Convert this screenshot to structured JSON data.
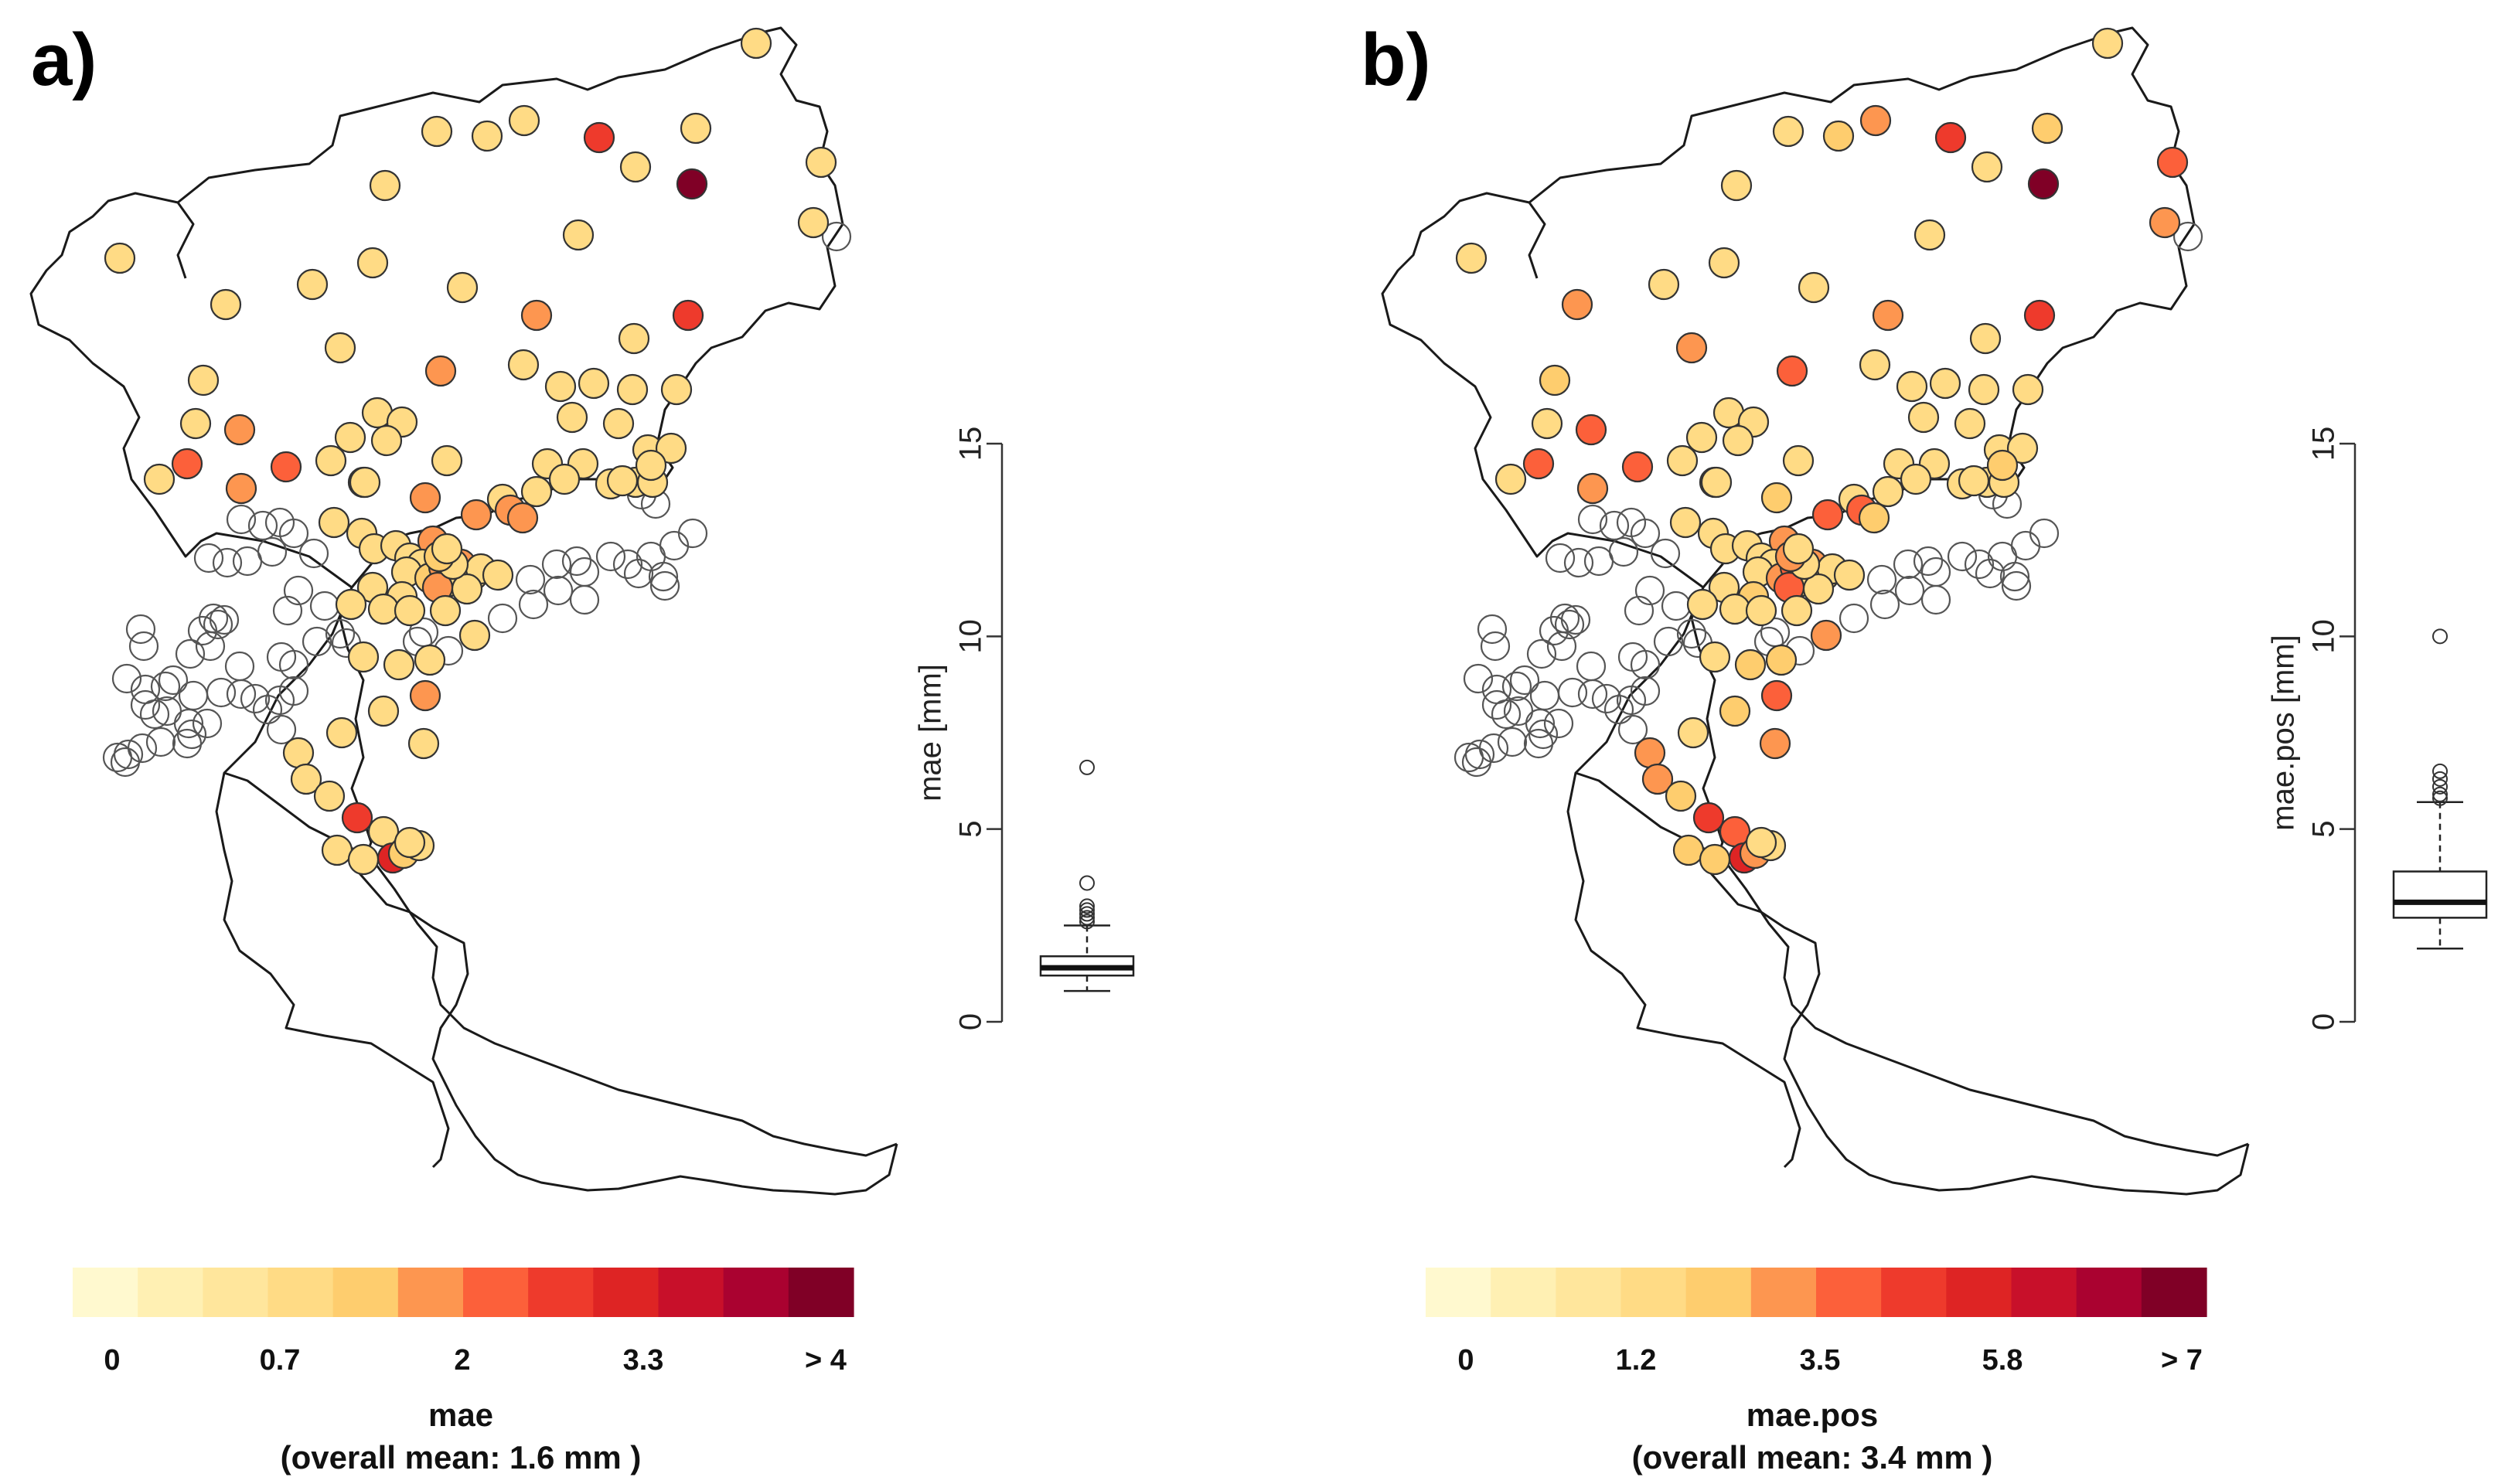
{
  "colors": {
    "scale": [
      "#FFF9CF",
      "#FFF0B3",
      "#FFE69C",
      "#FFDB85",
      "#FECD6E",
      "#FD9650",
      "#FC603A",
      "#EE3A2C",
      "#DE2424",
      "#C8102A",
      "#AA0230",
      "#800026"
    ],
    "empty_stroke": "#555555"
  },
  "panels": [
    {
      "label": "a)",
      "legend": {
        "tick_labels": [
          "0",
          "0.7",
          "2",
          "3.3",
          "> 4"
        ],
        "title": "mae",
        "subtitle": "(overall mean: 1.6 mm )"
      },
      "boxplot": {
        "axis_label": "mae [mm]",
        "ticks": [
          "0",
          "5",
          "10",
          "15"
        ],
        "ylim": [
          0,
          15
        ],
        "stats": {
          "min": 0.8,
          "q1": 1.2,
          "median": 1.4,
          "q3": 1.7,
          "max": 2.5
        },
        "outliers": [
          2.6,
          2.7,
          2.8,
          2.9,
          3.0,
          3.6,
          6.6
        ]
      }
    },
    {
      "label": "b)",
      "legend": {
        "tick_labels": [
          "0",
          "1.2",
          "3.5",
          "5.8",
          "> 7"
        ],
        "title": "mae.pos",
        "subtitle": "(overall mean: 3.4 mm )"
      },
      "boxplot": {
        "axis_label": "mae.pos [mm]",
        "ticks": [
          "0",
          "5",
          "10",
          "15"
        ],
        "ylim": [
          0,
          15
        ],
        "stats": {
          "min": 1.9,
          "q1": 2.7,
          "median": 3.1,
          "q3": 3.9,
          "max": 5.7
        },
        "outliers": [
          5.8,
          5.9,
          6.1,
          6.3,
          6.5,
          10.0
        ]
      }
    }
  ]
}
